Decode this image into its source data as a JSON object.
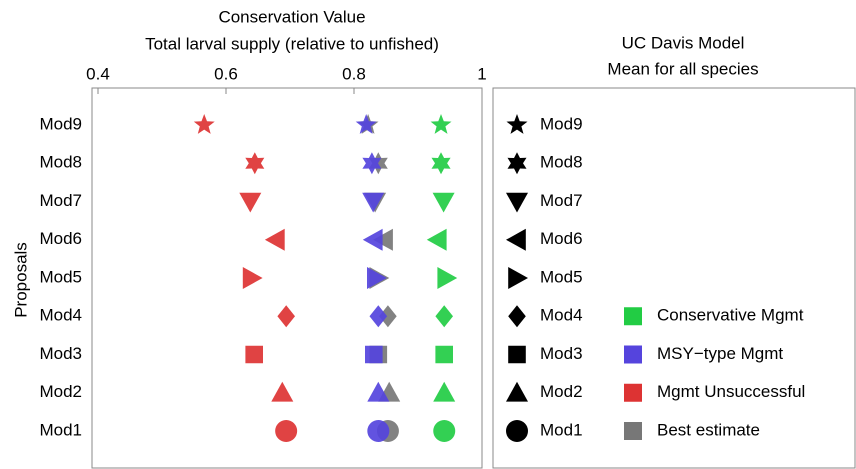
{
  "chart_data": {
    "type": "dotplot",
    "title": "Conservation Value",
    "subtitle": "Total larval supply (relative to unfished)",
    "ylabel": "Proposals",
    "legend_title": "UC Davis Model",
    "legend_subtitle": "Mean for all species",
    "categories": [
      "Mod9",
      "Mod8",
      "Mod7",
      "Mod6",
      "Mod5",
      "Mod4",
      "Mod3",
      "Mod2",
      "Mod1"
    ],
    "markers": [
      "star5",
      "star6",
      "triangle-down",
      "triangle-left",
      "triangle-right",
      "diamond",
      "square",
      "triangle-up",
      "circle"
    ],
    "xlim": [
      0.4,
      1
    ],
    "xticks": [
      0.4,
      0.6,
      0.8,
      1
    ],
    "series": [
      {
        "name": "Conservative Mgmt",
        "color": "#22cc44",
        "values": [
          0.936,
          0.936,
          0.94,
          0.931,
          0.944,
          0.941,
          0.941,
          0.941,
          0.941
        ]
      },
      {
        "name": "MSY−type Mgmt",
        "color": "#5544dd",
        "values": [
          0.819,
          0.828,
          0.83,
          0.831,
          0.834,
          0.838,
          0.831,
          0.838,
          0.838
        ]
      },
      {
        "name": "Mgmt Unsuccessful",
        "color": "#dd3333",
        "values": [
          0.566,
          0.645,
          0.638,
          0.678,
          0.64,
          0.694,
          0.644,
          0.688,
          0.694
        ]
      },
      {
        "name": "Best estimate",
        "color": "#777777",
        "values": [
          0.822,
          0.838,
          0.833,
          0.847,
          0.838,
          0.853,
          0.838,
          0.855,
          0.853
        ]
      }
    ]
  }
}
